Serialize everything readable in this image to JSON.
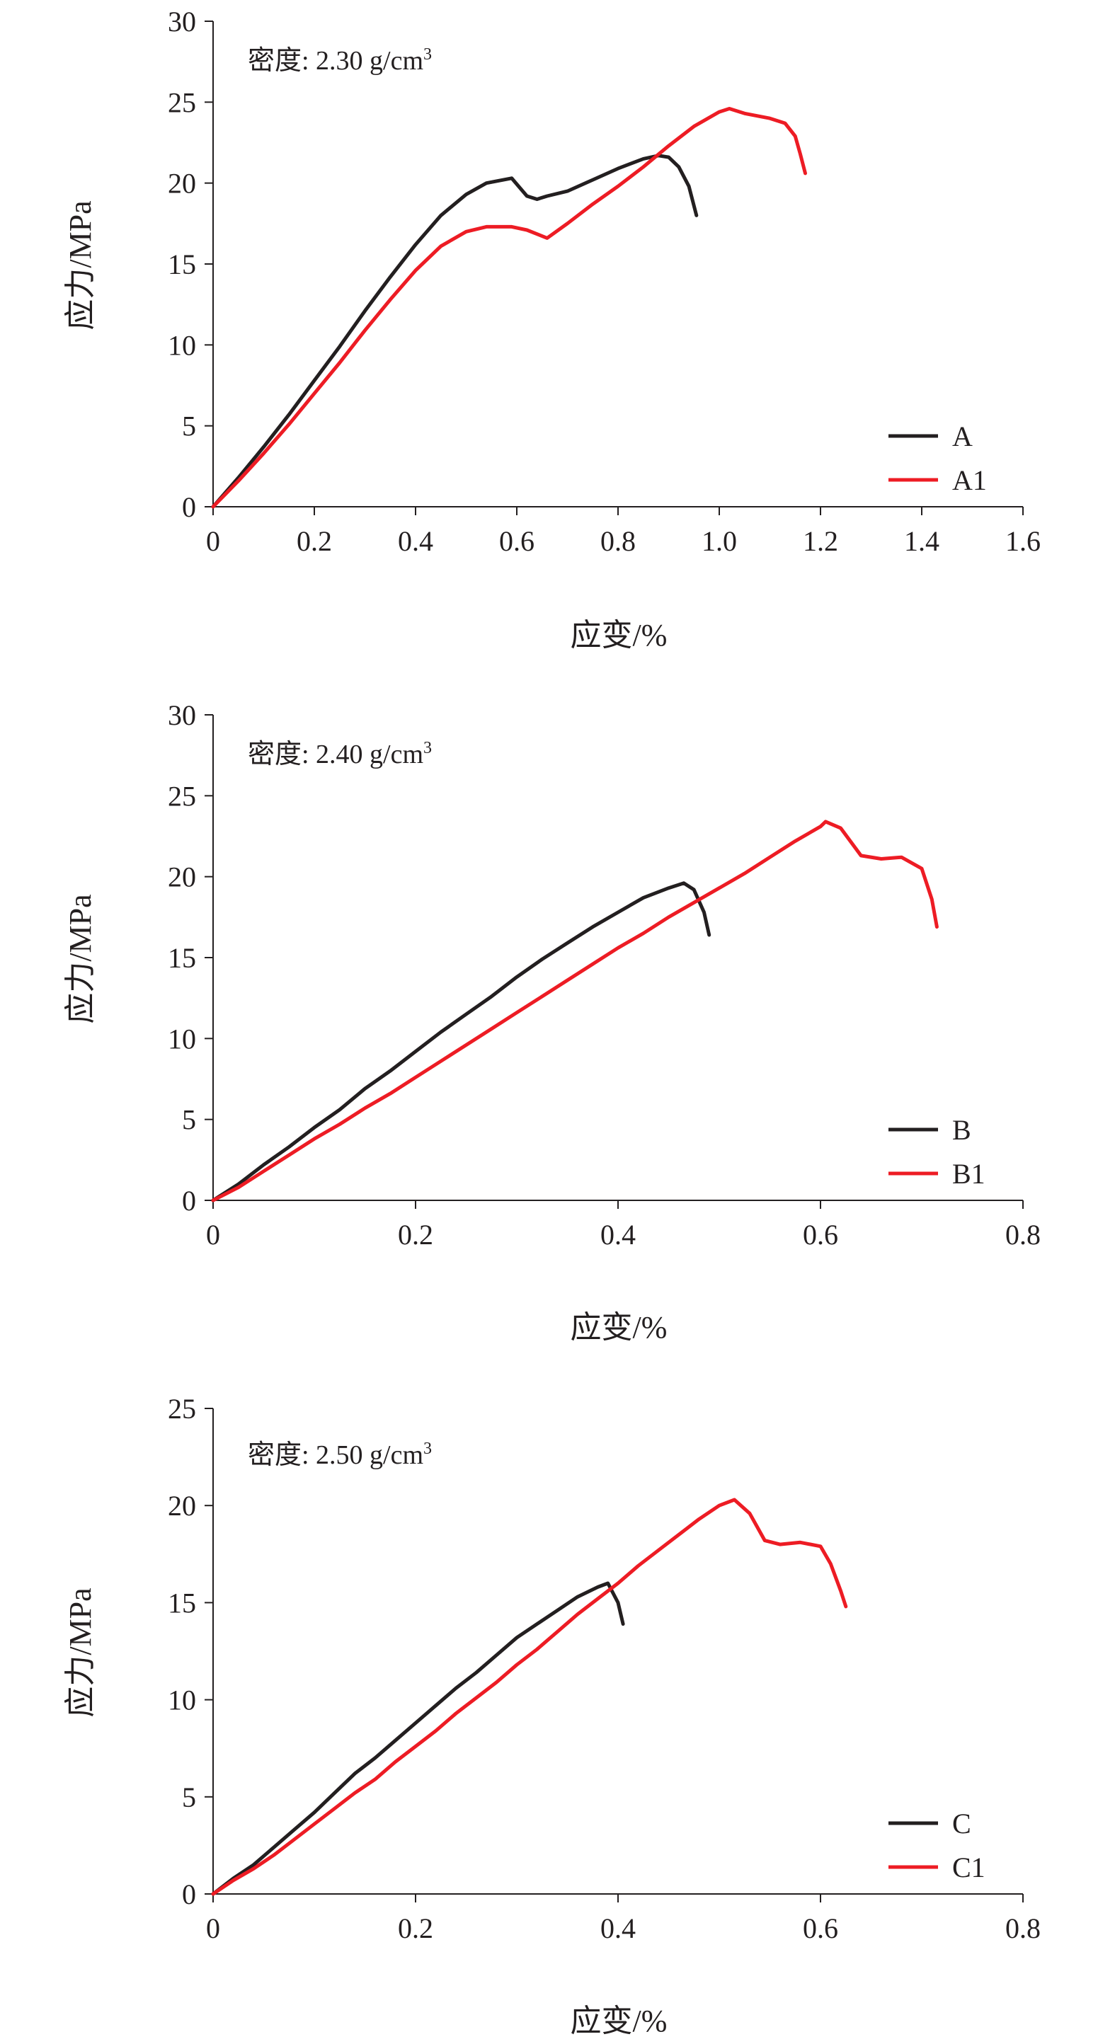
{
  "chart_data": [
    {
      "type": "line",
      "annotation": "密度: 2.30 g/cm",
      "annotation_sup": "3",
      "xlabel": "应变/%",
      "ylabel": "应力/MPa",
      "xlim": [
        0,
        1.6
      ],
      "ylim": [
        0,
        30
      ],
      "x_ticks": [
        "0",
        "0.2",
        "0.4",
        "0.6",
        "0.8",
        "1.0",
        "1.2",
        "1.4",
        "1.6"
      ],
      "y_ticks": [
        "0",
        "5",
        "10",
        "15",
        "20",
        "25",
        "30"
      ],
      "legend_position": "bottom-right",
      "series": [
        {
          "name": "A",
          "color": "#231f20",
          "points": [
            [
              0,
              0
            ],
            [
              0.05,
              1.8
            ],
            [
              0.1,
              3.7
            ],
            [
              0.15,
              5.7
            ],
            [
              0.2,
              7.8
            ],
            [
              0.25,
              9.9
            ],
            [
              0.3,
              12.1
            ],
            [
              0.35,
              14.2
            ],
            [
              0.4,
              16.2
            ],
            [
              0.45,
              18.0
            ],
            [
              0.5,
              19.3
            ],
            [
              0.54,
              20.0
            ],
            [
              0.59,
              20.3
            ],
            [
              0.62,
              19.2
            ],
            [
              0.64,
              19.0
            ],
            [
              0.66,
              19.2
            ],
            [
              0.7,
              19.5
            ],
            [
              0.75,
              20.2
            ],
            [
              0.8,
              20.9
            ],
            [
              0.85,
              21.5
            ],
            [
              0.88,
              21.7
            ],
            [
              0.9,
              21.6
            ],
            [
              0.92,
              21.0
            ],
            [
              0.94,
              19.8
            ],
            [
              0.955,
              18.0
            ]
          ]
        },
        {
          "name": "A1",
          "color": "#ed1c24",
          "points": [
            [
              0,
              0
            ],
            [
              0.05,
              1.6
            ],
            [
              0.1,
              3.3
            ],
            [
              0.15,
              5.1
            ],
            [
              0.2,
              7.0
            ],
            [
              0.25,
              8.9
            ],
            [
              0.3,
              10.9
            ],
            [
              0.35,
              12.8
            ],
            [
              0.4,
              14.6
            ],
            [
              0.45,
              16.1
            ],
            [
              0.5,
              17.0
            ],
            [
              0.54,
              17.3
            ],
            [
              0.59,
              17.3
            ],
            [
              0.62,
              17.1
            ],
            [
              0.66,
              16.6
            ],
            [
              0.7,
              17.5
            ],
            [
              0.75,
              18.7
            ],
            [
              0.8,
              19.8
            ],
            [
              0.85,
              21.0
            ],
            [
              0.9,
              22.3
            ],
            [
              0.95,
              23.5
            ],
            [
              1.0,
              24.4
            ],
            [
              1.02,
              24.6
            ],
            [
              1.05,
              24.3
            ],
            [
              1.1,
              24.0
            ],
            [
              1.13,
              23.7
            ],
            [
              1.15,
              22.9
            ],
            [
              1.16,
              21.8
            ],
            [
              1.17,
              20.6
            ]
          ]
        }
      ]
    },
    {
      "type": "line",
      "annotation": "密度: 2.40 g/cm",
      "annotation_sup": "3",
      "xlabel": "应变/%",
      "ylabel": "应力/MPa",
      "xlim": [
        0,
        0.8
      ],
      "ylim": [
        0,
        30
      ],
      "x_ticks": [
        "0",
        "0.2",
        "0.4",
        "0.6",
        "0.8"
      ],
      "y_ticks": [
        "0",
        "5",
        "10",
        "15",
        "20",
        "25",
        "30"
      ],
      "legend_position": "bottom-right",
      "series": [
        {
          "name": "B",
          "color": "#231f20",
          "points": [
            [
              0,
              0
            ],
            [
              0.025,
              1.0
            ],
            [
              0.05,
              2.2
            ],
            [
              0.075,
              3.3
            ],
            [
              0.1,
              4.5
            ],
            [
              0.125,
              5.6
            ],
            [
              0.15,
              6.9
            ],
            [
              0.175,
              8.0
            ],
            [
              0.2,
              9.2
            ],
            [
              0.225,
              10.4
            ],
            [
              0.25,
              11.5
            ],
            [
              0.275,
              12.6
            ],
            [
              0.3,
              13.8
            ],
            [
              0.325,
              14.9
            ],
            [
              0.35,
              15.9
            ],
            [
              0.375,
              16.9
            ],
            [
              0.4,
              17.8
            ],
            [
              0.425,
              18.7
            ],
            [
              0.45,
              19.3
            ],
            [
              0.465,
              19.6
            ],
            [
              0.475,
              19.2
            ],
            [
              0.485,
              17.8
            ],
            [
              0.49,
              16.4
            ]
          ]
        },
        {
          "name": "B1",
          "color": "#ed1c24",
          "points": [
            [
              0,
              0
            ],
            [
              0.025,
              0.8
            ],
            [
              0.05,
              1.8
            ],
            [
              0.075,
              2.8
            ],
            [
              0.1,
              3.8
            ],
            [
              0.125,
              4.7
            ],
            [
              0.15,
              5.7
            ],
            [
              0.175,
              6.6
            ],
            [
              0.2,
              7.6
            ],
            [
              0.225,
              8.6
            ],
            [
              0.25,
              9.6
            ],
            [
              0.275,
              10.6
            ],
            [
              0.3,
              11.6
            ],
            [
              0.325,
              12.6
            ],
            [
              0.35,
              13.6
            ],
            [
              0.375,
              14.6
            ],
            [
              0.4,
              15.6
            ],
            [
              0.425,
              16.5
            ],
            [
              0.45,
              17.5
            ],
            [
              0.475,
              18.4
            ],
            [
              0.5,
              19.3
            ],
            [
              0.525,
              20.2
            ],
            [
              0.55,
              21.2
            ],
            [
              0.575,
              22.2
            ],
            [
              0.6,
              23.1
            ],
            [
              0.605,
              23.4
            ],
            [
              0.62,
              23.0
            ],
            [
              0.64,
              21.3
            ],
            [
              0.66,
              21.1
            ],
            [
              0.68,
              21.2
            ],
            [
              0.7,
              20.5
            ],
            [
              0.71,
              18.6
            ],
            [
              0.715,
              16.9
            ]
          ]
        }
      ]
    },
    {
      "type": "line",
      "annotation": "密度: 2.50 g/cm",
      "annotation_sup": "3",
      "xlabel": "应变/%",
      "ylabel": "应力/MPa",
      "xlim": [
        0,
        0.8
      ],
      "ylim": [
        0,
        25
      ],
      "x_ticks": [
        "0",
        "0.2",
        "0.4",
        "0.6",
        "0.8"
      ],
      "y_ticks": [
        "0",
        "5",
        "10",
        "15",
        "20",
        "25"
      ],
      "legend_position": "bottom-right",
      "series": [
        {
          "name": "C",
          "color": "#231f20",
          "points": [
            [
              0,
              0
            ],
            [
              0.02,
              0.8
            ],
            [
              0.04,
              1.5
            ],
            [
              0.06,
              2.4
            ],
            [
              0.08,
              3.3
            ],
            [
              0.1,
              4.2
            ],
            [
              0.12,
              5.2
            ],
            [
              0.14,
              6.2
            ],
            [
              0.16,
              7.0
            ],
            [
              0.18,
              7.9
            ],
            [
              0.2,
              8.8
            ],
            [
              0.22,
              9.7
            ],
            [
              0.24,
              10.6
            ],
            [
              0.26,
              11.4
            ],
            [
              0.28,
              12.3
            ],
            [
              0.3,
              13.2
            ],
            [
              0.32,
              13.9
            ],
            [
              0.34,
              14.6
            ],
            [
              0.36,
              15.3
            ],
            [
              0.38,
              15.8
            ],
            [
              0.39,
              16.0
            ],
            [
              0.4,
              15.0
            ],
            [
              0.405,
              13.9
            ]
          ]
        },
        {
          "name": "C1",
          "color": "#ed1c24",
          "points": [
            [
              0,
              0
            ],
            [
              0.02,
              0.7
            ],
            [
              0.04,
              1.3
            ],
            [
              0.06,
              2.0
            ],
            [
              0.08,
              2.8
            ],
            [
              0.1,
              3.6
            ],
            [
              0.12,
              4.4
            ],
            [
              0.14,
              5.2
            ],
            [
              0.16,
              5.9
            ],
            [
              0.18,
              6.8
            ],
            [
              0.2,
              7.6
            ],
            [
              0.22,
              8.4
            ],
            [
              0.24,
              9.3
            ],
            [
              0.26,
              10.1
            ],
            [
              0.28,
              10.9
            ],
            [
              0.3,
              11.8
            ],
            [
              0.32,
              12.6
            ],
            [
              0.34,
              13.5
            ],
            [
              0.36,
              14.4
            ],
            [
              0.38,
              15.2
            ],
            [
              0.4,
              16.0
            ],
            [
              0.42,
              16.9
            ],
            [
              0.44,
              17.7
            ],
            [
              0.46,
              18.5
            ],
            [
              0.48,
              19.3
            ],
            [
              0.5,
              20.0
            ],
            [
              0.515,
              20.3
            ],
            [
              0.53,
              19.6
            ],
            [
              0.545,
              18.2
            ],
            [
              0.56,
              18.0
            ],
            [
              0.58,
              18.1
            ],
            [
              0.6,
              17.9
            ],
            [
              0.61,
              17.0
            ],
            [
              0.62,
              15.6
            ],
            [
              0.625,
              14.8
            ]
          ]
        }
      ]
    }
  ]
}
